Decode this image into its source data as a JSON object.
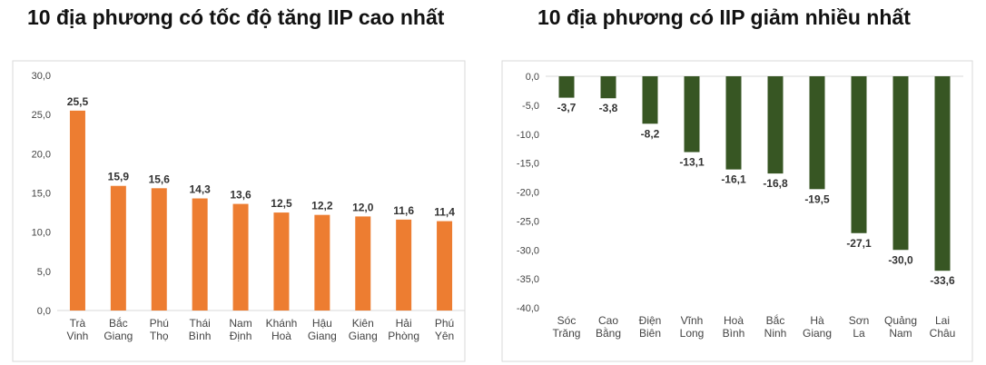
{
  "chart_data": [
    {
      "type": "bar",
      "title": "10 địa phương có tốc độ tăng IIP cao nhất",
      "categories": [
        [
          "Trà",
          "Vinh"
        ],
        [
          "Bắc",
          "Giang"
        ],
        [
          "Phú",
          "Thọ"
        ],
        [
          "Thái",
          "Bình"
        ],
        [
          "Nam",
          "Định"
        ],
        [
          "Khánh",
          "Hoà"
        ],
        [
          "Hậu",
          "Giang"
        ],
        [
          "Kiên",
          "Giang"
        ],
        [
          "Hải",
          "Phòng"
        ],
        [
          "Phú",
          "Yên"
        ]
      ],
      "values": [
        25.5,
        15.9,
        15.6,
        14.3,
        13.6,
        12.5,
        12.2,
        12.0,
        11.6,
        11.4
      ],
      "value_labels": [
        "25,5",
        "15,9",
        "15,6",
        "14,3",
        "13,6",
        "12,5",
        "12,2",
        "12,0",
        "11,6",
        "11,4"
      ],
      "ylim": [
        0,
        30
      ],
      "yticks": [
        0,
        5,
        10,
        15,
        20,
        25,
        30
      ],
      "ytick_labels": [
        "0,0",
        "5,0",
        "10,0",
        "15,0",
        "20,0",
        "25,0",
        "30,0"
      ],
      "color": "#ED7D31",
      "grid": false
    },
    {
      "type": "bar",
      "title": "10 địa phương có IIP giảm nhiều nhất",
      "categories": [
        [
          "Sóc",
          "Trăng"
        ],
        [
          "Cao",
          "Bằng"
        ],
        [
          "Điện",
          "Biên"
        ],
        [
          "Vĩnh",
          "Long"
        ],
        [
          "Hoà",
          "Bình"
        ],
        [
          "Bắc",
          "Ninh"
        ],
        [
          "Hà",
          "Giang"
        ],
        [
          "Sơn",
          "La"
        ],
        [
          "Quảng",
          "Nam"
        ],
        [
          "Lai",
          "Châu"
        ]
      ],
      "values": [
        -3.7,
        -3.8,
        -8.2,
        -13.1,
        -16.1,
        -16.8,
        -19.5,
        -27.1,
        -30.0,
        -33.6
      ],
      "value_labels": [
        "-3,7",
        "-3,8",
        "-8,2",
        "-13,1",
        "-16,1",
        "-16,8",
        "-19,5",
        "-27,1",
        "-30,0",
        "-33,6"
      ],
      "ylim": [
        -40,
        0
      ],
      "yticks": [
        0,
        -5,
        -10,
        -15,
        -20,
        -25,
        -30,
        -35,
        -40
      ],
      "ytick_labels": [
        "0,0",
        "-5,0",
        "-10,0",
        "-15,0",
        "-20,0",
        "-25,0",
        "-30,0",
        "-35,0",
        "-40,0"
      ],
      "color": "#375623",
      "grid": false
    }
  ]
}
